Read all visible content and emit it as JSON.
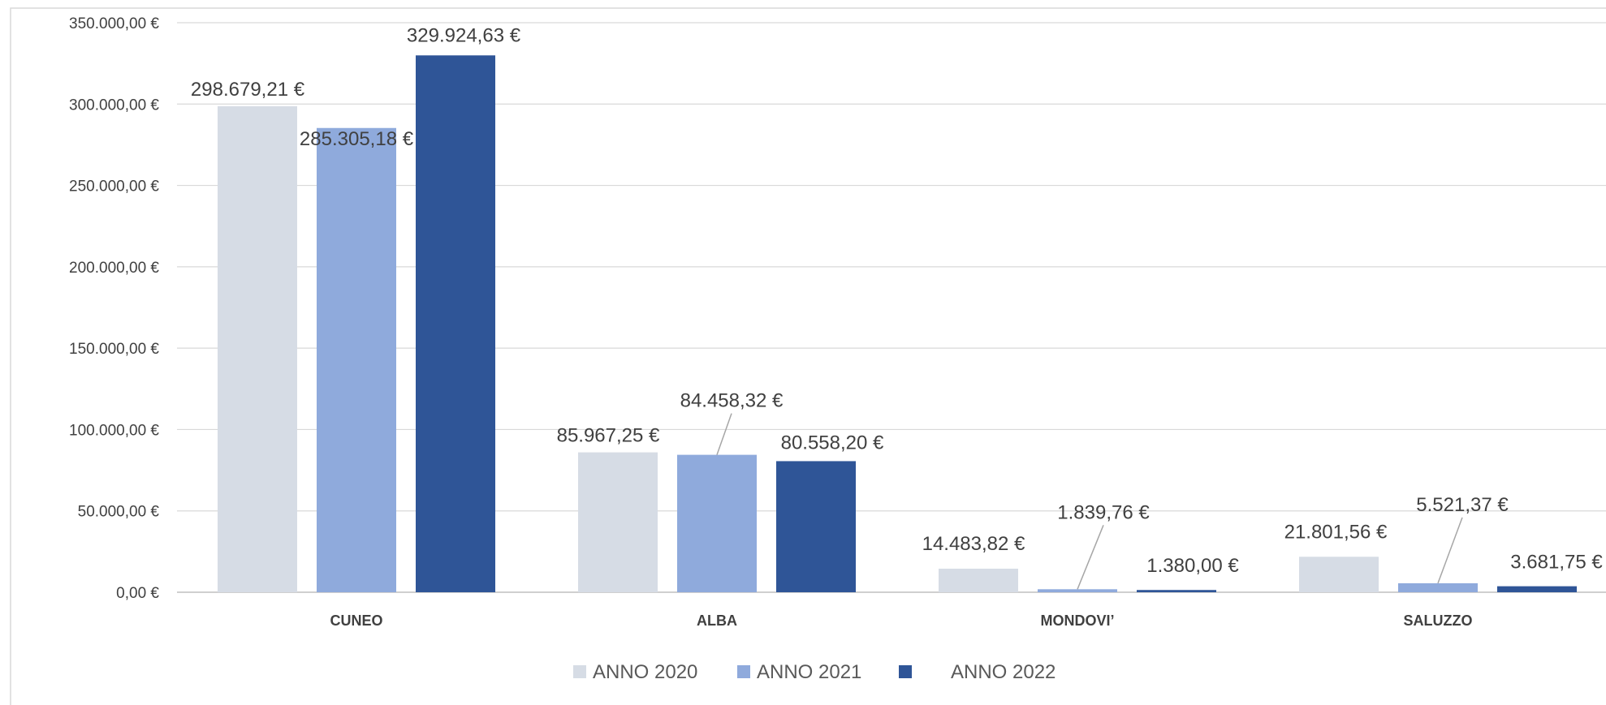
{
  "chart_data": {
    "type": "bar",
    "title": "",
    "xlabel": "",
    "ylabel": "",
    "categories": [
      "CUNEO",
      "ALBA",
      "MONDOVI’",
      "SALUZZO"
    ],
    "ylim": [
      0,
      350000
    ],
    "y_ticks": [
      0,
      50000,
      100000,
      150000,
      200000,
      250000,
      300000,
      350000
    ],
    "y_tick_labels": [
      "0,00 €",
      "50.000,00 €",
      "100.000,00 €",
      "150.000,00 €",
      "200.000,00 €",
      "250.000,00 €",
      "300.000,00 €",
      "350.000,00 €"
    ],
    "grid": true,
    "legend_position": "bottom",
    "series": [
      {
        "name": "ANNO 2020",
        "color": "#d6dce5",
        "values": [
          298679.21,
          85967.25,
          14483.82,
          21801.56
        ],
        "labels": [
          "298.679,21 €",
          "85.967,25 €",
          "14.483,82 €",
          "21.801,56 €"
        ]
      },
      {
        "name": "ANNO 2021",
        "color": "#8faadc",
        "values": [
          285305.18,
          84458.32,
          1839.76,
          5521.37
        ],
        "labels": [
          "285.305,18 €",
          "84.458,32 €",
          "1.839,76 €",
          "5.521,37 €"
        ]
      },
      {
        "name": "ANNO 2022",
        "color": "#2f5597",
        "values": [
          329924.63,
          80558.2,
          1380.0,
          3681.75
        ],
        "labels": [
          "329.924,63 €",
          "80.558,20 €",
          "1.380,00 €",
          "3.681,75 €"
        ]
      }
    ]
  }
}
